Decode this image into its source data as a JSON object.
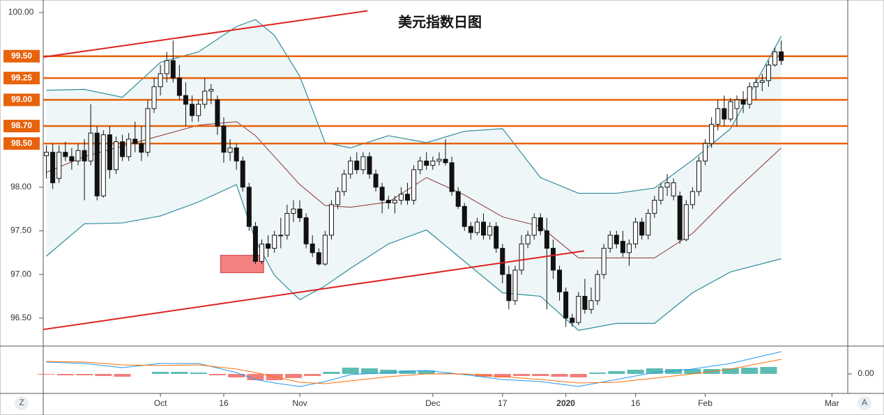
{
  "chart_data": {
    "type": "candlestick",
    "title": "美元指数日图",
    "xlim": [
      -0.5,
      126.5
    ],
    "ylim": [
      96.18,
      100.12
    ],
    "xticks": [
      {
        "value": 18,
        "label": "Oct"
      },
      {
        "value": 28,
        "label": "16"
      },
      {
        "value": 40,
        "label": "Nov"
      },
      {
        "value": 61,
        "label": "Dec"
      },
      {
        "value": 72,
        "label": "17"
      },
      {
        "value": 82,
        "label": "2020"
      },
      {
        "value": 93,
        "label": "16"
      },
      {
        "value": 104,
        "label": "Feb"
      },
      {
        "value": 124,
        "label": "Mar"
      }
    ],
    "yticks": [
      {
        "value": 100,
        "label": "100.00"
      },
      {
        "value": 98,
        "label": "98.00"
      },
      {
        "value": 97.5,
        "label": "97.50"
      },
      {
        "value": 97,
        "label": "97.00"
      },
      {
        "value": 96.5,
        "label": "96.50"
      }
    ],
    "levels": [
      {
        "value": 99.5,
        "label": "99.50"
      },
      {
        "value": 99.25,
        "label": "99.25"
      },
      {
        "value": 99,
        "label": "99.00"
      },
      {
        "value": 98.7,
        "label": "98.70"
      },
      {
        "value": 98.5,
        "label": "98.50"
      }
    ],
    "level_color": "#e8620c",
    "up_color": "#ffffff",
    "down_color": "#111111",
    "candles": [
      [
        98.36,
        98.48,
        98.1,
        98.4
      ],
      [
        98.4,
        98.5,
        97.98,
        98.05
      ],
      [
        98.1,
        98.48,
        98.05,
        98.4
      ],
      [
        98.4,
        98.52,
        98.3,
        98.35
      ],
      [
        98.35,
        98.45,
        98.2,
        98.3
      ],
      [
        98.3,
        98.5,
        98.25,
        98.42
      ],
      [
        98.42,
        98.55,
        97.85,
        98.3
      ],
      [
        98.3,
        98.95,
        98.25,
        98.62
      ],
      [
        98.62,
        98.7,
        97.85,
        97.9
      ],
      [
        97.9,
        98.65,
        97.88,
        98.6
      ],
      [
        98.6,
        98.7,
        98.1,
        98.2
      ],
      [
        98.2,
        98.58,
        98.15,
        98.52
      ],
      [
        98.52,
        98.6,
        98.3,
        98.35
      ],
      [
        98.35,
        98.62,
        98.3,
        98.55
      ],
      [
        98.55,
        98.75,
        98.4,
        98.5
      ],
      [
        98.5,
        98.7,
        98.3,
        98.4
      ],
      [
        98.4,
        99.0,
        98.35,
        98.9
      ],
      [
        98.9,
        99.25,
        98.85,
        99.15
      ],
      [
        99.15,
        99.4,
        99.05,
        99.3
      ],
      [
        99.3,
        99.55,
        99.2,
        99.45
      ],
      [
        99.45,
        99.68,
        99.2,
        99.25
      ],
      [
        99.25,
        99.4,
        99.0,
        99.05
      ],
      [
        99.05,
        99.2,
        98.7,
        98.95
      ],
      [
        98.95,
        99.05,
        98.75,
        98.82
      ],
      [
        98.82,
        99.0,
        98.75,
        98.95
      ],
      [
        98.95,
        99.25,
        98.9,
        99.1
      ],
      [
        99.1,
        99.18,
        98.95,
        99.12
      ],
      [
        99.0,
        99.05,
        98.6,
        98.7
      ],
      [
        98.7,
        98.8,
        98.28,
        98.4
      ],
      [
        98.4,
        98.55,
        98.3,
        98.45
      ],
      [
        98.45,
        98.5,
        98.2,
        98.3
      ],
      [
        98.3,
        98.35,
        97.95,
        98.0
      ],
      [
        98.0,
        98.05,
        97.5,
        97.55
      ],
      [
        97.55,
        97.6,
        97.12,
        97.15
      ],
      [
        97.15,
        97.4,
        97.12,
        97.35
      ],
      [
        97.35,
        97.45,
        97.2,
        97.3
      ],
      [
        97.3,
        97.5,
        97.25,
        97.45
      ],
      [
        97.45,
        97.65,
        97.3,
        97.45
      ],
      [
        97.45,
        97.8,
        97.4,
        97.7
      ],
      [
        97.7,
        97.85,
        97.6,
        97.75
      ],
      [
        97.75,
        97.85,
        97.6,
        97.65
      ],
      [
        97.65,
        97.7,
        97.3,
        97.35
      ],
      [
        97.35,
        97.45,
        97.2,
        97.25
      ],
      [
        97.25,
        97.3,
        97.1,
        97.12
      ],
      [
        97.12,
        97.5,
        97.1,
        97.45
      ],
      [
        97.45,
        97.85,
        97.4,
        97.8
      ],
      [
        97.8,
        98.0,
        97.75,
        97.95
      ],
      [
        97.95,
        98.2,
        97.9,
        98.15
      ],
      [
        98.15,
        98.35,
        98.1,
        98.3
      ],
      [
        98.3,
        98.4,
        98.15,
        98.2
      ],
      [
        98.2,
        98.4,
        98.15,
        98.35
      ],
      [
        98.35,
        98.4,
        98.1,
        98.15
      ],
      [
        98.15,
        98.2,
        97.95,
        98.0
      ],
      [
        98.0,
        98.05,
        97.7,
        97.85
      ],
      [
        97.85,
        97.9,
        97.75,
        97.82
      ],
      [
        97.82,
        97.9,
        97.7,
        97.85
      ],
      [
        97.85,
        98.0,
        97.8,
        97.92
      ],
      [
        97.92,
        98.05,
        97.8,
        97.85
      ],
      [
        97.85,
        98.25,
        97.8,
        98.2
      ],
      [
        98.2,
        98.35,
        98.15,
        98.3
      ],
      [
        98.3,
        98.4,
        98.2,
        98.25
      ],
      [
        98.25,
        98.35,
        98.2,
        98.3
      ],
      [
        98.3,
        98.4,
        98.25,
        98.32
      ],
      [
        98.32,
        98.55,
        98.25,
        98.28
      ],
      [
        98.28,
        98.35,
        97.9,
        97.95
      ],
      [
        97.95,
        98.0,
        97.75,
        97.78
      ],
      [
        97.78,
        97.82,
        97.5,
        97.55
      ],
      [
        97.55,
        97.6,
        97.4,
        97.48
      ],
      [
        97.48,
        97.65,
        97.45,
        97.6
      ],
      [
        97.6,
        97.7,
        97.4,
        97.45
      ],
      [
        97.45,
        97.6,
        97.4,
        97.55
      ],
      [
        97.55,
        97.6,
        97.25,
        97.3
      ],
      [
        97.3,
        97.35,
        96.9,
        97.0
      ],
      [
        97.0,
        97.1,
        96.6,
        96.7
      ],
      [
        96.7,
        97.1,
        96.65,
        97.05
      ],
      [
        97.05,
        97.45,
        97.0,
        97.35
      ],
      [
        97.35,
        97.5,
        97.3,
        97.45
      ],
      [
        97.45,
        97.7,
        97.4,
        97.65
      ],
      [
        97.65,
        97.7,
        97.45,
        97.5
      ],
      [
        97.5,
        97.65,
        96.6,
        97.3
      ],
      [
        97.3,
        97.4,
        96.95,
        97.05
      ],
      [
        97.05,
        97.1,
        96.7,
        96.8
      ],
      [
        96.8,
        96.85,
        96.4,
        96.5
      ],
      [
        96.5,
        96.55,
        96.4,
        96.45
      ],
      [
        96.45,
        96.8,
        96.42,
        96.75
      ],
      [
        96.75,
        96.95,
        96.55,
        96.6
      ],
      [
        96.6,
        96.85,
        96.55,
        96.7
      ],
      [
        96.7,
        97.05,
        96.65,
        97.0
      ],
      [
        97.0,
        97.35,
        96.95,
        97.3
      ],
      [
        97.3,
        97.5,
        97.25,
        97.45
      ],
      [
        97.45,
        97.5,
        97.3,
        97.35
      ],
      [
        97.38,
        97.5,
        97.2,
        97.25
      ],
      [
        97.25,
        97.4,
        97.1,
        97.35
      ],
      [
        97.35,
        97.65,
        97.3,
        97.6
      ],
      [
        97.6,
        97.65,
        97.4,
        97.45
      ],
      [
        97.45,
        97.75,
        97.4,
        97.7
      ],
      [
        97.7,
        97.9,
        97.65,
        97.85
      ],
      [
        97.85,
        98.05,
        97.8,
        98.0
      ],
      [
        98.0,
        98.15,
        97.9,
        98.05
      ],
      [
        97.9,
        98.1,
        97.85,
        98.05
      ],
      [
        97.9,
        97.95,
        97.35,
        97.4
      ],
      [
        97.4,
        97.85,
        97.38,
        97.8
      ],
      [
        97.8,
        98.0,
        97.75,
        97.95
      ],
      [
        97.95,
        98.35,
        97.9,
        98.3
      ],
      [
        98.3,
        98.55,
        98.25,
        98.5
      ],
      [
        98.5,
        98.8,
        98.45,
        98.72
      ],
      [
        98.72,
        99.0,
        98.65,
        98.9
      ],
      [
        98.9,
        99.05,
        98.7,
        98.78
      ],
      [
        98.78,
        99.02,
        98.75,
        98.98
      ],
      [
        98.9,
        99.05,
        98.7,
        99.0
      ],
      [
        99.0,
        99.1,
        98.85,
        98.95
      ],
      [
        98.95,
        99.2,
        98.9,
        99.15
      ],
      [
        99.15,
        99.25,
        99.0,
        99.2
      ],
      [
        99.2,
        99.3,
        99.1,
        99.22
      ],
      [
        99.22,
        99.45,
        99.15,
        99.4
      ],
      [
        99.4,
        99.6,
        99.38,
        99.55
      ],
      [
        99.55,
        99.68,
        99.4,
        99.45
      ]
    ],
    "bands": {
      "x": [
        0,
        6,
        12,
        18,
        24,
        30,
        33,
        36,
        40,
        44,
        48,
        54,
        60,
        66,
        72,
        78,
        84,
        90,
        96,
        102,
        108,
        116
      ],
      "upper": [
        99.11,
        99.12,
        99.03,
        99.43,
        99.55,
        99.84,
        99.92,
        99.74,
        99.27,
        98.51,
        98.45,
        98.59,
        98.51,
        98.64,
        98.67,
        98.11,
        97.93,
        97.93,
        97.99,
        98.31,
        98.67,
        99.73
      ],
      "middle": [
        98.17,
        98.35,
        98.47,
        98.59,
        98.71,
        98.75,
        98.59,
        98.35,
        98.03,
        97.79,
        97.77,
        97.83,
        98.11,
        97.91,
        97.66,
        97.55,
        97.19,
        97.19,
        97.19,
        97.47,
        97.91,
        98.45
      ],
      "lower": [
        97.21,
        97.58,
        97.59,
        97.67,
        97.83,
        98.03,
        97.39,
        96.99,
        96.71,
        96.87,
        97.07,
        97.35,
        97.51,
        97.15,
        96.79,
        96.75,
        96.36,
        96.44,
        96.44,
        96.79,
        97.03,
        97.18
      ]
    },
    "trendlines": [
      {
        "x": [
          -0.5,
          50.7
        ],
        "y": [
          99.49,
          100.02
        ]
      },
      {
        "x": [
          -0.5,
          84.9
        ],
        "y": [
          96.37,
          97.27
        ]
      }
    ],
    "zone": {
      "x": [
        27.5,
        34.3
      ],
      "y": [
        97.02,
        97.22
      ]
    },
    "macd": {
      "ylim": [
        -0.28,
        0.37
      ],
      "yticks": [
        {
          "value": 0,
          "label": "0.00"
        }
      ],
      "x": [
        0,
        6,
        12,
        18,
        24,
        30,
        33,
        36,
        40,
        44,
        48,
        54,
        60,
        66,
        72,
        78,
        84,
        90,
        96,
        102,
        108,
        116
      ],
      "macd": [
        0.17,
        0.15,
        0.09,
        0.15,
        0.15,
        0.02,
        -0.08,
        -0.13,
        -0.18,
        -0.11,
        -0.01,
        0.02,
        0.05,
        -0.01,
        -0.08,
        -0.11,
        -0.18,
        -0.08,
        0.02,
        0.07,
        0.15,
        0.32
      ],
      "signal": [
        0.18,
        0.17,
        0.13,
        0.12,
        0.13,
        0.07,
        0.02,
        -0.04,
        -0.12,
        -0.14,
        -0.1,
        -0.04,
        0.0,
        0.0,
        -0.04,
        -0.08,
        -0.13,
        -0.12,
        -0.06,
        0.0,
        0.07,
        0.21
      ],
      "hist_x": [
        0,
        3,
        6,
        9,
        12,
        15,
        18,
        21,
        24,
        27,
        30,
        33,
        36,
        39,
        42,
        45,
        48,
        51,
        54,
        57,
        60,
        63,
        66,
        69,
        72,
        75,
        78,
        81,
        84,
        87,
        90,
        93,
        96,
        99,
        102,
        105,
        108,
        111,
        114
      ],
      "hist": [
        -0.01,
        -0.02,
        -0.02,
        -0.03,
        -0.04,
        0.0,
        0.03,
        0.03,
        0.02,
        -0.02,
        -0.05,
        -0.09,
        -0.09,
        -0.06,
        -0.03,
        0.03,
        0.09,
        0.08,
        0.06,
        0.05,
        0.05,
        0.01,
        -0.01,
        -0.04,
        -0.05,
        -0.03,
        -0.03,
        -0.04,
        -0.05,
        0.02,
        0.04,
        0.06,
        0.08,
        0.07,
        0.07,
        0.07,
        0.08,
        0.09,
        0.1
      ]
    },
    "buttons": [
      "Z",
      "A"
    ]
  }
}
